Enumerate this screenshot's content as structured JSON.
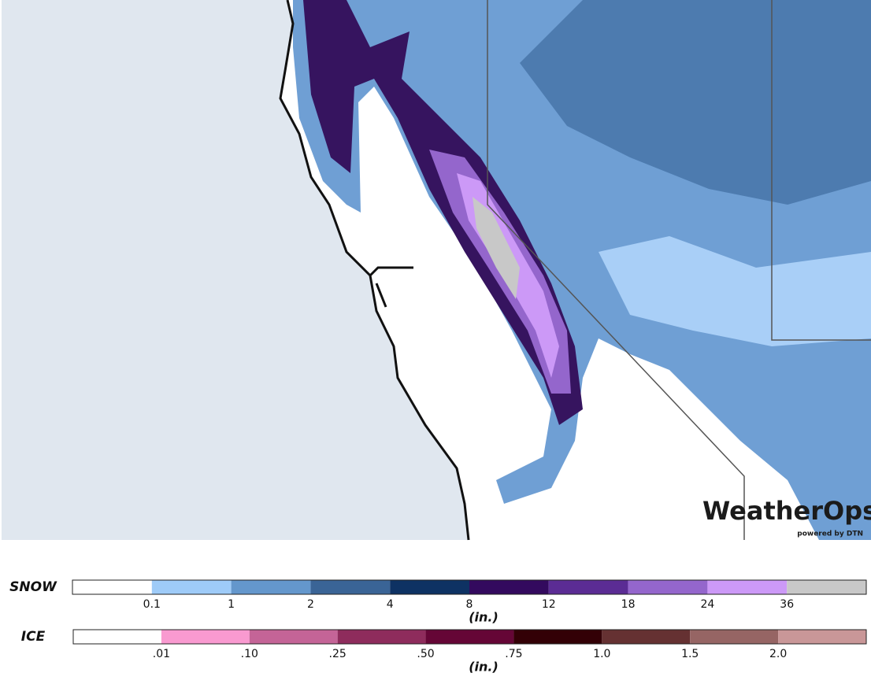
{
  "map": {
    "logo": "WeatherOps",
    "logo_sub": "powered by DTN"
  },
  "legends": [
    {
      "label": "SNOW",
      "unit": "(in.)",
      "colors": [
        "#ffffff",
        "#9ecbf8",
        "#6497cc",
        "#3a6496",
        "#0e3263",
        "#330a5e",
        "#5b2c94",
        "#9466cc",
        "#cc99f7",
        "#c8c8c8"
      ],
      "ticks": [
        "0.1",
        "1",
        "2",
        "4",
        "8",
        "12",
        "18",
        "24",
        "36"
      ]
    },
    {
      "label": "ICE",
      "unit": "(in.)",
      "colors": [
        "#ffffff",
        "#f99ad0",
        "#c46497",
        "#8e2c5c",
        "#650636",
        "#330006",
        "#653132",
        "#966564",
        "#c99798"
      ],
      "ticks": [
        ".01",
        ".10",
        ".25",
        ".50",
        ".75",
        "1.0",
        "1.5",
        "2.0"
      ]
    }
  ]
}
